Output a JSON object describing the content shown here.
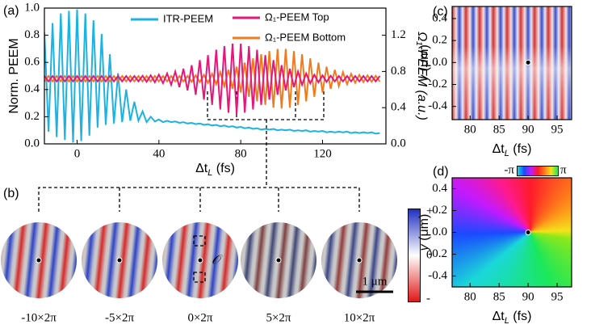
{
  "chart_data": [
    {
      "type": "line",
      "panel_label": "(a)",
      "xlabel": {
        "main": "Δt",
        "sub": "L",
        "unit": " (fs)"
      },
      "ylabel": "Norm. PEEM",
      "y2label": "Ω₁-PEEM (a.u.)",
      "xlim": [
        -16,
        151
      ],
      "xticks": [
        0,
        40,
        80,
        120
      ],
      "ylim": [
        0,
        1
      ],
      "yticks": [
        {
          "value": 0,
          "label": "0.0"
        },
        0.2,
        0.4,
        0.6,
        0.8,
        {
          "value": 1,
          "label": "1.0"
        }
      ],
      "y2lim": [
        0,
        1.5
      ],
      "y2ticks": [
        {
          "value": 0,
          "label": "0.0"
        },
        0.4,
        0.8,
        1.2
      ],
      "legend": true,
      "x": [
        -16,
        -14,
        -12,
        -10,
        -8,
        -6,
        -4,
        -2,
        0,
        2,
        4,
        6,
        8,
        10,
        12,
        14,
        16,
        18,
        20,
        22,
        24,
        26,
        28,
        30,
        32,
        34,
        36,
        38,
        40,
        42,
        44,
        46,
        48,
        50,
        52,
        54,
        56,
        58,
        60,
        62,
        64,
        66,
        68,
        70,
        72,
        74,
        76,
        78,
        80,
        82,
        84,
        86,
        88,
        90,
        92,
        94,
        96,
        98,
        100,
        102,
        104,
        106,
        108,
        110,
        112,
        114,
        116,
        118,
        120,
        122,
        124,
        126,
        128,
        130,
        132,
        134,
        136,
        138,
        140,
        142,
        144,
        146,
        148
      ],
      "series": [
        {
          "name": "ITR-PEEM",
          "color": "#1cb2e2",
          "axis": "y",
          "values": [
            0.82,
            0.09,
            0.89,
            0.05,
            0.96,
            0.03,
            0.98,
            0.01,
            0.99,
            0.02,
            0.96,
            0.06,
            0.91,
            0.12,
            0.81,
            0.14,
            0.66,
            0.15,
            0.52,
            0.16,
            0.4,
            0.17,
            0.31,
            0.17,
            0.24,
            0.16,
            0.2,
            0.165,
            0.18,
            0.16,
            0.17,
            0.16,
            0.165,
            0.155,
            0.16,
            0.15,
            0.155,
            0.145,
            0.15,
            0.14,
            0.145,
            0.135,
            0.14,
            0.13,
            0.135,
            0.125,
            0.13,
            0.12,
            0.125,
            0.115,
            0.12,
            0.11,
            0.115,
            0.105,
            0.11,
            0.105,
            0.11,
            0.1,
            0.105,
            0.1,
            0.105,
            0.095,
            0.1,
            0.095,
            0.1,
            0.09,
            0.095,
            0.09,
            0.095,
            0.085,
            0.09,
            0.085,
            0.09,
            0.085,
            0.09,
            0.08,
            0.085,
            0.08,
            0.085,
            0.08,
            0.085,
            0.075,
            0.08
          ]
        },
        {
          "name": "Ω₁-PEEM Top",
          "color": "#e6177b",
          "axis": "y2",
          "values": [
            0.75,
            0.69,
            0.75,
            0.69,
            0.75,
            0.69,
            0.75,
            0.69,
            0.75,
            0.69,
            0.75,
            0.69,
            0.75,
            0.69,
            0.75,
            0.69,
            0.75,
            0.69,
            0.75,
            0.69,
            0.75,
            0.69,
            0.75,
            0.69,
            0.753,
            0.685,
            0.757,
            0.68,
            0.764,
            0.67,
            0.778,
            0.652,
            0.799,
            0.626,
            0.83,
            0.59,
            0.87,
            0.543,
            0.925,
            0.488,
            0.98,
            0.43,
            1.04,
            0.38,
            1.08,
            0.345,
            1.107,
            0.33,
            1.107,
            0.345,
            1.08,
            0.38,
            1.04,
            0.43,
            0.98,
            0.488,
            0.925,
            0.543,
            0.87,
            0.59,
            0.83,
            0.626,
            0.799,
            0.652,
            0.778,
            0.67,
            0.764,
            0.68,
            0.757,
            0.685,
            0.753,
            0.69,
            0.75,
            0.69,
            0.75,
            0.69,
            0.75,
            0.69,
            0.75,
            0.69,
            0.75,
            0.69,
            0.75
          ]
        },
        {
          "name": "Ω₁-PEEM Bottom",
          "color": "#f07a1c",
          "axis": "y2",
          "values": [
            0.69,
            0.75,
            0.69,
            0.75,
            0.69,
            0.75,
            0.69,
            0.75,
            0.69,
            0.75,
            0.69,
            0.75,
            0.69,
            0.75,
            0.69,
            0.75,
            0.69,
            0.75,
            0.69,
            0.75,
            0.69,
            0.75,
            0.69,
            0.75,
            0.69,
            0.75,
            0.69,
            0.75,
            0.69,
            0.75,
            0.69,
            0.75,
            0.69,
            0.75,
            0.69,
            0.75,
            0.686,
            0.756,
            0.682,
            0.762,
            0.673,
            0.774,
            0.659,
            0.792,
            0.637,
            0.818,
            0.607,
            0.853,
            0.567,
            0.897,
            0.52,
            0.945,
            0.47,
            0.99,
            0.43,
            1.025,
            0.4,
            1.048,
            0.39,
            1.048,
            0.4,
            1.025,
            0.43,
            0.99,
            0.47,
            0.945,
            0.52,
            0.897,
            0.567,
            0.853,
            0.607,
            0.818,
            0.637,
            0.792,
            0.659,
            0.774,
            0.673,
            0.762,
            0.682,
            0.756,
            0.686,
            0.752,
            0.688
          ]
        }
      ]
    },
    {
      "type": "heatmap",
      "panel_label": "(c)",
      "xlabel": {
        "main": "Δt",
        "sub": "L",
        "unit": " (fs)"
      },
      "ylabel": {
        "var": "y",
        "unit": " (μm)"
      },
      "xlim": [
        76.9,
        97.5
      ],
      "xticks": [
        80,
        85,
        90,
        95
      ],
      "ylim": [
        -0.52,
        0.51
      ],
      "yticks": [
        -0.4,
        -0.2,
        {
          "value": 0,
          "label": "0.0"
        },
        0.2,
        0.4
      ],
      "marker": {
        "x": 90,
        "y": 0
      }
    },
    {
      "type": "heatmap",
      "panel_label": "(d)",
      "xlabel": {
        "main": "Δt",
        "sub": "L",
        "unit": " (fs)"
      },
      "ylabel": {
        "var": "y",
        "unit": " (μm)"
      },
      "xlim": [
        76.9,
        97.5
      ],
      "xticks": [
        80,
        85,
        90,
        95
      ],
      "ylim": [
        -0.5,
        0.5
      ],
      "yticks": [
        -0.4,
        -0.2,
        {
          "value": 0,
          "label": "0.0"
        },
        0.2,
        0.4
      ],
      "marker": {
        "x": 90,
        "y": 0
      },
      "colorbar": {
        "min_label": "-π",
        "max_label": "π"
      }
    }
  ],
  "panel_b": {
    "label": "(b)",
    "frames": [
      "-10×2π",
      "-5×2π",
      "0×2π",
      "5×2π",
      "10×2π"
    ],
    "colorbar": {
      "max": "+",
      "mid": "0",
      "min": "-"
    },
    "scale_bar": "1 μm",
    "origin": "𝒪"
  }
}
